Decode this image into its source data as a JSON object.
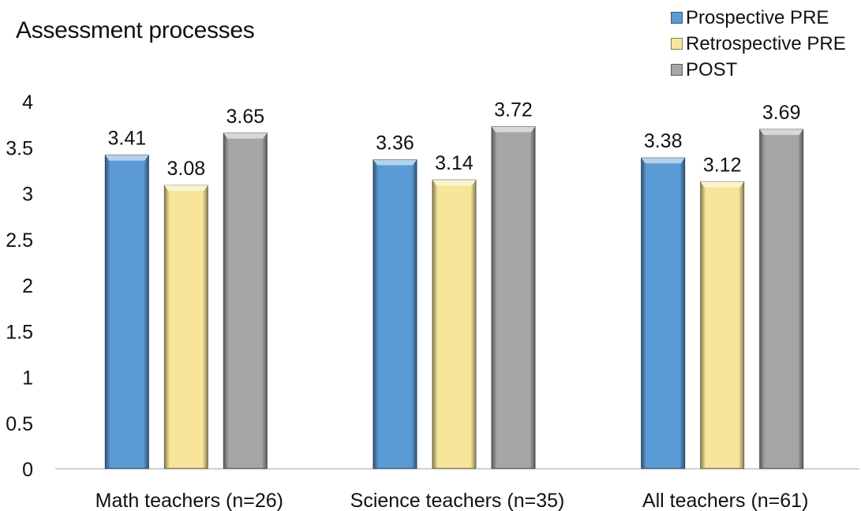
{
  "chart_data": {
    "type": "bar",
    "title": "Assessment processes",
    "categories": [
      "Math teachers (n=26)",
      "Science teachers (n=35)",
      "All teachers (n=61)"
    ],
    "series": [
      {
        "name": "Prospective PRE",
        "values": [
          3.41,
          3.36,
          3.38
        ],
        "color": "#5b9bd5"
      },
      {
        "name": "Retrospective PRE",
        "values": [
          3.08,
          3.14,
          3.12
        ],
        "color": "#f7e59a"
      },
      {
        "name": "POST",
        "values": [
          3.65,
          3.72,
          3.69
        ],
        "color": "#a6a6a6"
      }
    ],
    "yticks": [
      "0",
      "0.5",
      "1",
      "1.5",
      "2",
      "2.5",
      "3",
      "3.5",
      "4"
    ],
    "ylim": [
      0,
      4
    ],
    "xlabel": "",
    "ylabel": "",
    "grid": false,
    "legend_position": "top-right",
    "data_labels": true
  }
}
